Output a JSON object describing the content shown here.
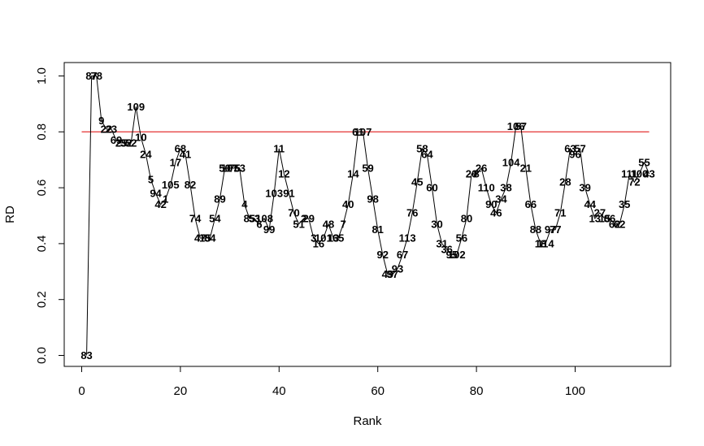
{
  "chart_data": {
    "type": "line",
    "xlabel": "Rank",
    "ylabel": "RD",
    "xlim": [
      0,
      115
    ],
    "ylim": [
      0,
      1
    ],
    "x_ticks": [
      0,
      20,
      40,
      60,
      80,
      100
    ],
    "y_ticks": [
      0.0,
      0.2,
      0.4,
      0.6,
      0.8,
      1.0
    ],
    "x_tick_labels": [
      "0",
      "20",
      "40",
      "60",
      "80",
      "100"
    ],
    "y_tick_labels": [
      "0.0",
      "0.2",
      "0.4",
      "0.6",
      "0.8",
      "1.0"
    ],
    "grid": false,
    "reference_line": {
      "y": 0.8,
      "color": "#dd0000"
    },
    "line_color": "#000000",
    "points": [
      {
        "rank": 1,
        "rd": 0.0,
        "label": "83"
      },
      {
        "rank": 2,
        "rd": 1.0,
        "label": "87"
      },
      {
        "rank": 3,
        "rd": 1.0,
        "label": "78"
      },
      {
        "rank": 4,
        "rd": 0.84,
        "label": "9"
      },
      {
        "rank": 5,
        "rd": 0.81,
        "label": "22"
      },
      {
        "rank": 6,
        "rd": 0.81,
        "label": "23"
      },
      {
        "rank": 7,
        "rd": 0.77,
        "label": "69"
      },
      {
        "rank": 8,
        "rd": 0.76,
        "label": "25"
      },
      {
        "rank": 9,
        "rd": 0.76,
        "label": "32"
      },
      {
        "rank": 10,
        "rd": 0.76,
        "label": "52"
      },
      {
        "rank": 11,
        "rd": 0.89,
        "label": "109"
      },
      {
        "rank": 12,
        "rd": 0.78,
        "label": "10"
      },
      {
        "rank": 13,
        "rd": 0.72,
        "label": "24"
      },
      {
        "rank": 14,
        "rd": 0.63,
        "label": "5"
      },
      {
        "rank": 15,
        "rd": 0.58,
        "label": "94"
      },
      {
        "rank": 16,
        "rd": 0.54,
        "label": "42"
      },
      {
        "rank": 17,
        "rd": 0.56,
        "label": "1"
      },
      {
        "rank": 18,
        "rd": 0.61,
        "label": "105"
      },
      {
        "rank": 19,
        "rd": 0.69,
        "label": "17"
      },
      {
        "rank": 20,
        "rd": 0.74,
        "label": "68"
      },
      {
        "rank": 21,
        "rd": 0.72,
        "label": "41"
      },
      {
        "rank": 22,
        "rd": 0.61,
        "label": "82"
      },
      {
        "rank": 23,
        "rd": 0.49,
        "label": "74"
      },
      {
        "rank": 24,
        "rd": 0.42,
        "label": "47"
      },
      {
        "rank": 25,
        "rd": 0.42,
        "label": "15"
      },
      {
        "rank": 26,
        "rd": 0.42,
        "label": "84"
      },
      {
        "rank": 27,
        "rd": 0.49,
        "label": "54"
      },
      {
        "rank": 28,
        "rd": 0.56,
        "label": "89"
      },
      {
        "rank": 29,
        "rd": 0.67,
        "label": "50"
      },
      {
        "rank": 30,
        "rd": 0.67,
        "label": "107"
      },
      {
        "rank": 31,
        "rd": 0.67,
        "label": "75"
      },
      {
        "rank": 32,
        "rd": 0.67,
        "label": "53"
      },
      {
        "rank": 33,
        "rd": 0.54,
        "label": "4"
      },
      {
        "rank": 34,
        "rd": 0.49,
        "label": "85"
      },
      {
        "rank": 35,
        "rd": 0.49,
        "label": "53"
      },
      {
        "rank": 36,
        "rd": 0.47,
        "label": "6"
      },
      {
        "rank": 37,
        "rd": 0.49,
        "label": "108"
      },
      {
        "rank": 38,
        "rd": 0.45,
        "label": "99"
      },
      {
        "rank": 39,
        "rd": 0.58,
        "label": "103"
      },
      {
        "rank": 40,
        "rd": 0.74,
        "label": "11"
      },
      {
        "rank": 41,
        "rd": 0.65,
        "label": "12"
      },
      {
        "rank": 42,
        "rd": 0.58,
        "label": "91"
      },
      {
        "rank": 43,
        "rd": 0.51,
        "label": "70"
      },
      {
        "rank": 44,
        "rd": 0.47,
        "label": "51"
      },
      {
        "rank": 45,
        "rd": 0.49,
        "label": "2"
      },
      {
        "rank": 46,
        "rd": 0.49,
        "label": "29"
      },
      {
        "rank": 47,
        "rd": 0.42,
        "label": "3"
      },
      {
        "rank": 48,
        "rd": 0.4,
        "label": "16"
      },
      {
        "rank": 49,
        "rd": 0.42,
        "label": "101"
      },
      {
        "rank": 50,
        "rd": 0.47,
        "label": "48"
      },
      {
        "rank": 51,
        "rd": 0.42,
        "label": "13"
      },
      {
        "rank": 52,
        "rd": 0.42,
        "label": "65"
      },
      {
        "rank": 53,
        "rd": 0.47,
        "label": "7"
      },
      {
        "rank": 54,
        "rd": 0.54,
        "label": "40"
      },
      {
        "rank": 55,
        "rd": 0.65,
        "label": "14"
      },
      {
        "rank": 56,
        "rd": 0.8,
        "label": "61"
      },
      {
        "rank": 57,
        "rd": 0.8,
        "label": "107"
      },
      {
        "rank": 58,
        "rd": 0.67,
        "label": "59"
      },
      {
        "rank": 59,
        "rd": 0.56,
        "label": "98"
      },
      {
        "rank": 60,
        "rd": 0.45,
        "label": "81"
      },
      {
        "rank": 61,
        "rd": 0.36,
        "label": "92"
      },
      {
        "rank": 62,
        "rd": 0.29,
        "label": "49"
      },
      {
        "rank": 63,
        "rd": 0.29,
        "label": "37"
      },
      {
        "rank": 64,
        "rd": 0.31,
        "label": "93"
      },
      {
        "rank": 65,
        "rd": 0.36,
        "label": "67"
      },
      {
        "rank": 66,
        "rd": 0.42,
        "label": "113"
      },
      {
        "rank": 67,
        "rd": 0.51,
        "label": "76"
      },
      {
        "rank": 68,
        "rd": 0.62,
        "label": "45"
      },
      {
        "rank": 69,
        "rd": 0.74,
        "label": "58"
      },
      {
        "rank": 70,
        "rd": 0.72,
        "label": "64"
      },
      {
        "rank": 71,
        "rd": 0.6,
        "label": "60"
      },
      {
        "rank": 72,
        "rd": 0.47,
        "label": "30"
      },
      {
        "rank": 73,
        "rd": 0.4,
        "label": "31"
      },
      {
        "rank": 74,
        "rd": 0.38,
        "label": "36"
      },
      {
        "rank": 75,
        "rd": 0.36,
        "label": "95"
      },
      {
        "rank": 76,
        "rd": 0.36,
        "label": "102"
      },
      {
        "rank": 77,
        "rd": 0.42,
        "label": "56"
      },
      {
        "rank": 78,
        "rd": 0.49,
        "label": "80"
      },
      {
        "rank": 79,
        "rd": 0.65,
        "label": "20"
      },
      {
        "rank": 80,
        "rd": 0.65,
        "label": "8"
      },
      {
        "rank": 81,
        "rd": 0.67,
        "label": "26"
      },
      {
        "rank": 82,
        "rd": 0.6,
        "label": "110"
      },
      {
        "rank": 83,
        "rd": 0.54,
        "label": "90"
      },
      {
        "rank": 84,
        "rd": 0.51,
        "label": "46"
      },
      {
        "rank": 85,
        "rd": 0.56,
        "label": "34"
      },
      {
        "rank": 86,
        "rd": 0.6,
        "label": "38"
      },
      {
        "rank": 87,
        "rd": 0.69,
        "label": "104"
      },
      {
        "rank": 88,
        "rd": 0.82,
        "label": "106"
      },
      {
        "rank": 89,
        "rd": 0.82,
        "label": "57"
      },
      {
        "rank": 90,
        "rd": 0.67,
        "label": "21"
      },
      {
        "rank": 91,
        "rd": 0.54,
        "label": "66"
      },
      {
        "rank": 92,
        "rd": 0.45,
        "label": "88"
      },
      {
        "rank": 93,
        "rd": 0.4,
        "label": "18"
      },
      {
        "rank": 94,
        "rd": 0.4,
        "label": "114"
      },
      {
        "rank": 95,
        "rd": 0.45,
        "label": "97"
      },
      {
        "rank": 96,
        "rd": 0.45,
        "label": "77"
      },
      {
        "rank": 97,
        "rd": 0.51,
        "label": "71"
      },
      {
        "rank": 98,
        "rd": 0.62,
        "label": "28"
      },
      {
        "rank": 99,
        "rd": 0.74,
        "label": "63"
      },
      {
        "rank": 100,
        "rd": 0.72,
        "label": "96"
      },
      {
        "rank": 101,
        "rd": 0.74,
        "label": "57"
      },
      {
        "rank": 102,
        "rd": 0.6,
        "label": "39"
      },
      {
        "rank": 103,
        "rd": 0.54,
        "label": "44"
      },
      {
        "rank": 104,
        "rd": 0.49,
        "label": "13"
      },
      {
        "rank": 105,
        "rd": 0.51,
        "label": "27"
      },
      {
        "rank": 106,
        "rd": 0.49,
        "label": "15"
      },
      {
        "rank": 107,
        "rd": 0.49,
        "label": "86"
      },
      {
        "rank": 108,
        "rd": 0.47,
        "label": "62"
      },
      {
        "rank": 109,
        "rd": 0.47,
        "label": "62"
      },
      {
        "rank": 110,
        "rd": 0.54,
        "label": "35"
      },
      {
        "rank": 111,
        "rd": 0.65,
        "label": "111"
      },
      {
        "rank": 112,
        "rd": 0.62,
        "label": "72"
      },
      {
        "rank": 113,
        "rd": 0.65,
        "label": "100"
      },
      {
        "rank": 114,
        "rd": 0.69,
        "label": "55"
      },
      {
        "rank": 115,
        "rd": 0.65,
        "label": "43"
      }
    ]
  }
}
